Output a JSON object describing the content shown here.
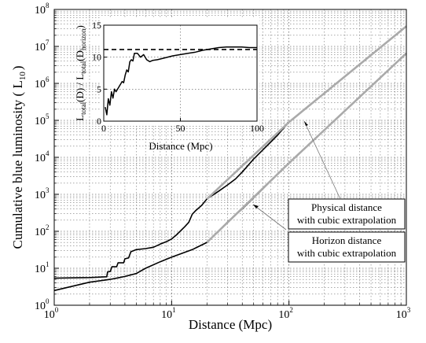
{
  "chart_data": [
    {
      "type": "line",
      "xlabel": "Distance (Mpc)",
      "ylabel": "Cumulative blue luminosity ( L",
      "ylabel_sub": "10",
      "ylabel_close": ")",
      "xscale": "log",
      "yscale": "log",
      "xlim": [
        1,
        1000
      ],
      "ylim": [
        1,
        100000000
      ],
      "xticks": [
        {
          "base": "10",
          "exp": "0",
          "value": 1
        },
        {
          "base": "10",
          "exp": "1",
          "value": 10
        },
        {
          "base": "10",
          "exp": "2",
          "value": 100
        },
        {
          "base": "10",
          "exp": "3",
          "value": 1000
        }
      ],
      "yticks": [
        {
          "base": "10",
          "exp": "0",
          "value": 1
        },
        {
          "base": "10",
          "exp": "1",
          "value": 10
        },
        {
          "base": "10",
          "exp": "2",
          "value": 100
        },
        {
          "base": "10",
          "exp": "3",
          "value": 1000
        },
        {
          "base": "10",
          "exp": "4",
          "value": 10000
        },
        {
          "base": "10",
          "exp": "5",
          "value": 100000
        },
        {
          "base": "10",
          "exp": "6",
          "value": 1000000
        },
        {
          "base": "10",
          "exp": "7",
          "value": 10000000
        },
        {
          "base": "10",
          "exp": "8",
          "value": 100000000
        }
      ],
      "grid": true,
      "series": [
        {
          "name": "Physical distance",
          "color": "#000000",
          "points": [
            [
              1,
              5.4
            ],
            [
              2,
              5.6
            ],
            [
              2.8,
              5.9
            ],
            [
              2.85,
              8
            ],
            [
              3.0,
              8.2
            ],
            [
              3.1,
              11
            ],
            [
              3.4,
              11
            ],
            [
              3.5,
              14
            ],
            [
              3.9,
              14
            ],
            [
              4.0,
              18
            ],
            [
              4.3,
              19
            ],
            [
              4.5,
              28
            ],
            [
              5,
              32
            ],
            [
              6,
              34
            ],
            [
              7,
              37
            ],
            [
              8,
              45
            ],
            [
              9,
              52
            ],
            [
              10,
              62
            ],
            [
              11,
              80
            ],
            [
              12,
              105
            ],
            [
              13,
              135
            ],
            [
              14,
              175
            ],
            [
              15,
              290
            ],
            [
              16,
              360
            ],
            [
              18,
              500
            ],
            [
              20,
              750
            ],
            [
              25,
              1200
            ],
            [
              30,
              1800
            ],
            [
              35,
              2600
            ],
            [
              40,
              4000
            ],
            [
              50,
              9000
            ],
            [
              60,
              16000
            ],
            [
              70,
              26000
            ],
            [
              80,
              40000
            ],
            [
              90,
              62000
            ],
            [
              100,
              90000
            ]
          ]
        },
        {
          "name": "Physical distance extrapolation",
          "color": "#aaaaaa",
          "points": [
            [
              20,
              750
            ],
            [
              100,
              90000
            ],
            [
              1000,
              35000000
            ]
          ]
        },
        {
          "name": "Horizon distance",
          "color": "#000000",
          "points": [
            [
              1,
              2.5
            ],
            [
              2,
              4.2
            ],
            [
              3,
              5
            ],
            [
              3.5,
              5.5
            ],
            [
              4,
              6
            ],
            [
              5,
              7.2
            ],
            [
              6,
              10
            ],
            [
              8,
              15
            ],
            [
              10,
              20
            ],
            [
              15,
              32
            ],
            [
              20,
              50
            ],
            [
              25,
              100
            ],
            [
              30,
              180
            ],
            [
              40,
              400
            ],
            [
              50,
              800
            ],
            [
              60,
              1400
            ],
            [
              80,
              3500
            ],
            [
              100,
              7000
            ]
          ]
        },
        {
          "name": "Horizon distance extrapolation",
          "color": "#aaaaaa",
          "points": [
            [
              20,
              50
            ],
            [
              100,
              7000
            ],
            [
              1000,
              6500000
            ]
          ]
        }
      ],
      "annotations": [
        {
          "lines": [
            "Physical distance",
            "with cubic extrapolation"
          ],
          "target": [
            115,
            140000
          ]
        },
        {
          "lines": [
            "Horizon distance",
            "with cubic extrapolation"
          ],
          "target": [
            50,
            900
          ]
        }
      ]
    },
    {
      "type": "line",
      "xlabel": "Distance (Mpc)",
      "ylabel": "L",
      "ylabel_parts": [
        "L",
        "total",
        "(D) / L",
        "total",
        "(D",
        "horizon",
        ")"
      ],
      "xlim": [
        0,
        100
      ],
      "ylim": [
        0,
        15
      ],
      "xticks": [
        {
          "label": "0",
          "value": 0
        },
        {
          "label": "50",
          "value": 50
        },
        {
          "label": "100",
          "value": 100
        }
      ],
      "yticks": [
        {
          "label": "0",
          "value": 0
        },
        {
          "label": "5",
          "value": 5
        },
        {
          "label": "10",
          "value": 10
        },
        {
          "label": "15",
          "value": 15
        }
      ],
      "grid": true,
      "reference_line": 11.2,
      "series": [
        {
          "name": "ratio",
          "color": "#000000",
          "points": [
            [
              1,
              2.2
            ],
            [
              2,
              1.0
            ],
            [
              3,
              3.5
            ],
            [
              4,
              2.5
            ],
            [
              5,
              4.6
            ],
            [
              6,
              3.6
            ],
            [
              7,
              5.0
            ],
            [
              8,
              4.6
            ],
            [
              10,
              5.4
            ],
            [
              12,
              6.2
            ],
            [
              13,
              6.0
            ],
            [
              14,
              7.2
            ],
            [
              15,
              8.0
            ],
            [
              16,
              7.7
            ],
            [
              17,
              9.3
            ],
            [
              18,
              9.6
            ],
            [
              19,
              9.4
            ],
            [
              20,
              10.6
            ],
            [
              22,
              10.6
            ],
            [
              24,
              10.0
            ],
            [
              26,
              10.4
            ],
            [
              28,
              9.6
            ],
            [
              30,
              9.3
            ],
            [
              32,
              9.5
            ],
            [
              35,
              9.6
            ],
            [
              40,
              9.9
            ],
            [
              45,
              10.2
            ],
            [
              50,
              10.4
            ],
            [
              55,
              10.6
            ],
            [
              60,
              10.8
            ],
            [
              65,
              11.1
            ],
            [
              70,
              11.3
            ],
            [
              75,
              11.5
            ],
            [
              80,
              11.6
            ],
            [
              85,
              11.6
            ],
            [
              90,
              11.6
            ],
            [
              95,
              11.5
            ],
            [
              100,
              11.5
            ]
          ]
        }
      ]
    }
  ]
}
